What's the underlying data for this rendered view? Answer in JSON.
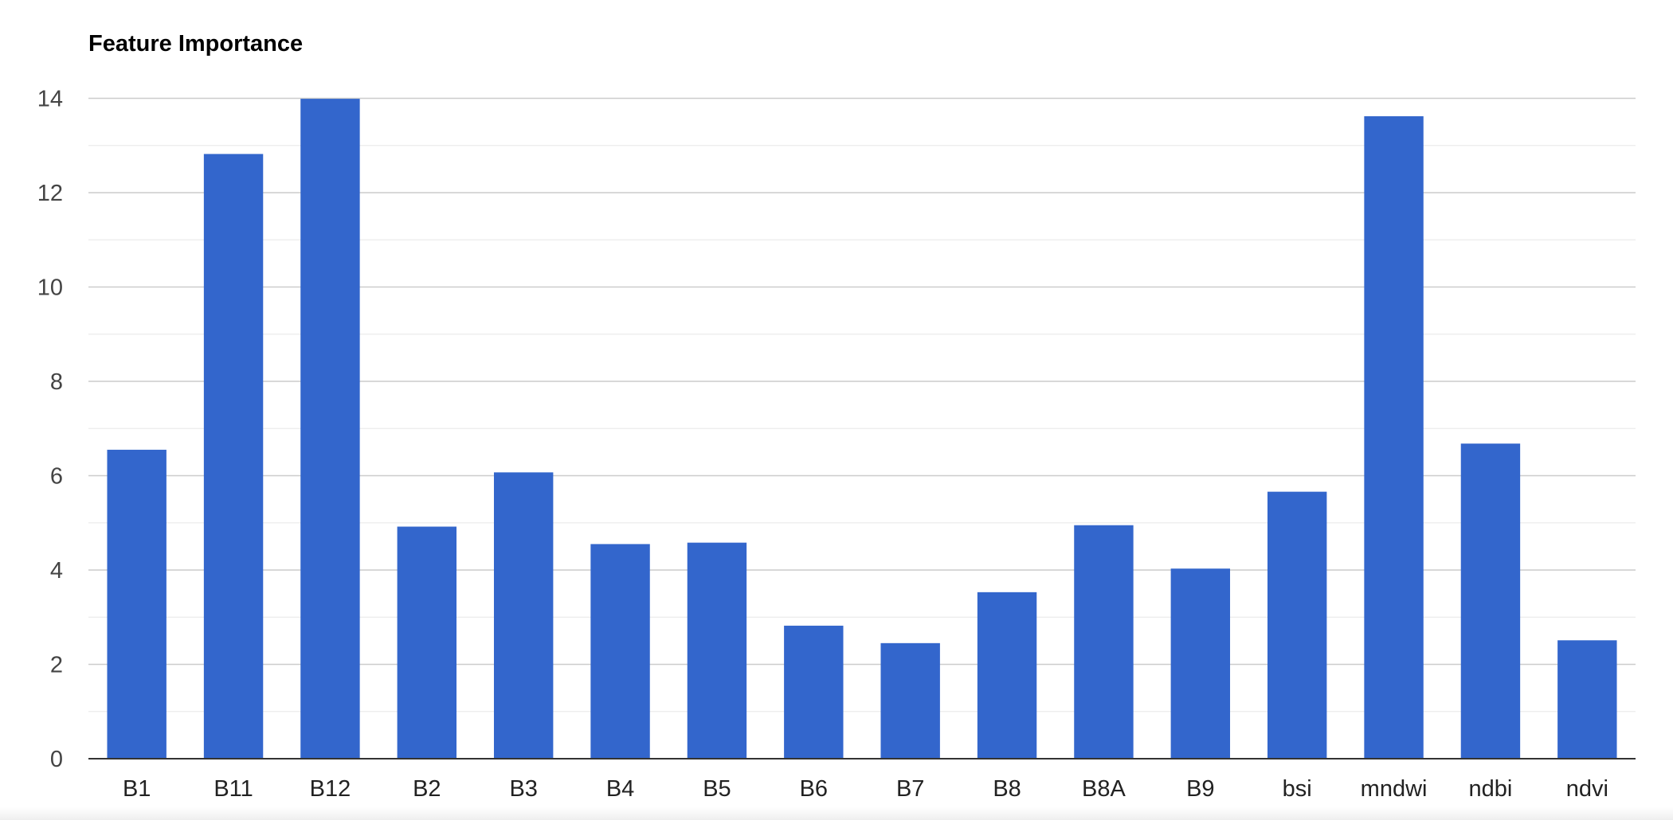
{
  "chart_data": {
    "type": "bar",
    "title": "Feature Importance",
    "xlabel": "",
    "ylabel": "",
    "categories": [
      "B1",
      "B11",
      "B12",
      "B2",
      "B3",
      "B4",
      "B5",
      "B6",
      "B7",
      "B8",
      "B8A",
      "B9",
      "bsi",
      "mndwi",
      "ndbi",
      "ndvi"
    ],
    "values": [
      6.55,
      12.82,
      13.99,
      4.92,
      6.07,
      4.55,
      4.58,
      2.82,
      2.45,
      3.53,
      4.95,
      4.03,
      5.66,
      13.62,
      6.68,
      2.51
    ],
    "ylim": [
      0,
      14
    ],
    "yticks": [
      "0",
      "2",
      "4",
      "6",
      "8",
      "10",
      "12",
      "14"
    ],
    "grid": true,
    "legend": "none",
    "colors": {
      "bar": "#3366cc"
    }
  }
}
